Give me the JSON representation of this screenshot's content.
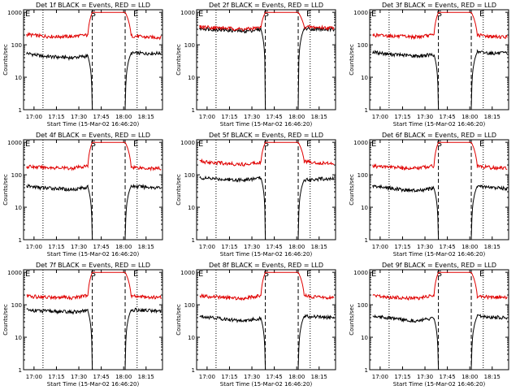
{
  "colors": {
    "events": "#000000",
    "lld": "#e00000",
    "axis": "#000000"
  },
  "axis_labels": {
    "ylabel": "Counts/sec",
    "xlabel": "Start Time (15-Mar-02 16:46:20)"
  },
  "time_ticks": [
    "17:00",
    "17:15",
    "17:30",
    "17:45",
    "18:00",
    "18:15"
  ],
  "y_ticks": [
    "1",
    "10",
    "100",
    "1000"
  ],
  "markers": [
    "E",
    "S",
    "E"
  ],
  "chart_data": [
    {
      "type": "line",
      "title": "Det 1f BLACK = Events, RED = LLD",
      "x_range": [
        "16:53",
        "18:26"
      ],
      "ylim": [
        1,
        1200
      ],
      "yscale": "log",
      "x_ticks": [
        "17:00",
        "17:15",
        "17:30",
        "17:45",
        "18:00",
        "18:15"
      ],
      "event_lines": [
        "17:39",
        "18:01"
      ],
      "dotted_lines": [
        "17:06",
        "18:09"
      ],
      "series": [
        {
          "name": "BLACK = Events",
          "x": [
            "16:55",
            "17:05",
            "17:15",
            "17:25",
            "17:36",
            "17:39",
            "17:45",
            "18:01",
            "18:05",
            "18:15",
            "18:25"
          ],
          "values": [
            55,
            45,
            42,
            40,
            45,
            0,
            0,
            0,
            55,
            55,
            55
          ]
        },
        {
          "name": "RED = LLD",
          "x": [
            "16:55",
            "17:05",
            "17:15",
            "17:25",
            "17:36",
            "17:39",
            "17:45",
            "18:01",
            "18:05",
            "18:15",
            "18:25"
          ],
          "values": [
            210,
            185,
            180,
            180,
            200,
            1000,
            1000,
            1000,
            190,
            170,
            170
          ]
        }
      ]
    },
    {
      "type": "line",
      "title": "Det 2f BLACK = Events, RED = LLD",
      "x_range": [
        "16:53",
        "18:26"
      ],
      "ylim": [
        1,
        1200
      ],
      "yscale": "log",
      "x_ticks": [
        "17:00",
        "17:15",
        "17:30",
        "17:45",
        "18:00",
        "18:15"
      ],
      "event_lines": [
        "17:39",
        "18:01"
      ],
      "dotted_lines": [
        "17:06",
        "18:09"
      ],
      "series": [
        {
          "name": "BLACK = Events",
          "x": [
            "16:55",
            "17:05",
            "17:15",
            "17:25",
            "17:36",
            "17:39",
            "17:45",
            "18:01",
            "18:05",
            "18:15",
            "18:25"
          ],
          "values": [
            320,
            300,
            280,
            260,
            300,
            0,
            0,
            0,
            320,
            300,
            290
          ]
        },
        {
          "name": "RED = LLD",
          "x": [
            "16:55",
            "17:05",
            "17:15",
            "17:25",
            "17:36",
            "17:39",
            "17:45",
            "18:01",
            "18:05",
            "18:15",
            "18:25"
          ],
          "values": [
            360,
            340,
            320,
            300,
            340,
            1000,
            1000,
            1000,
            360,
            340,
            330
          ]
        }
      ]
    },
    {
      "type": "line",
      "title": "Det 3f BLACK = Events, RED = LLD",
      "x_range": [
        "16:53",
        "18:26"
      ],
      "ylim": [
        1,
        1200
      ],
      "yscale": "log",
      "x_ticks": [
        "17:00",
        "17:15",
        "17:30",
        "17:45",
        "18:00",
        "18:15"
      ],
      "event_lines": [
        "17:39",
        "18:01"
      ],
      "dotted_lines": [
        "17:06",
        "18:09"
      ],
      "series": [
        {
          "name": "BLACK = Events",
          "x": [
            "16:55",
            "17:05",
            "17:15",
            "17:25",
            "17:36",
            "17:39",
            "17:45",
            "18:01",
            "18:05",
            "18:15",
            "18:25"
          ],
          "values": [
            60,
            52,
            48,
            45,
            50,
            0,
            0,
            0,
            60,
            55,
            55
          ]
        },
        {
          "name": "RED = LLD",
          "x": [
            "16:55",
            "17:05",
            "17:15",
            "17:25",
            "17:36",
            "17:39",
            "17:45",
            "18:01",
            "18:05",
            "18:15",
            "18:25"
          ],
          "values": [
            200,
            190,
            180,
            175,
            200,
            1000,
            1000,
            1000,
            200,
            180,
            175
          ]
        }
      ]
    },
    {
      "type": "line",
      "title": "Det 4f BLACK = Events, RED = LLD",
      "x_range": [
        "16:53",
        "18:26"
      ],
      "ylim": [
        1,
        1200
      ],
      "yscale": "log",
      "x_ticks": [
        "17:00",
        "17:15",
        "17:30",
        "17:45",
        "18:00",
        "18:15"
      ],
      "event_lines": [
        "17:39",
        "18:01"
      ],
      "dotted_lines": [
        "17:06",
        "18:09"
      ],
      "series": [
        {
          "name": "BLACK = Events",
          "x": [
            "16:55",
            "17:05",
            "17:15",
            "17:25",
            "17:36",
            "17:39",
            "17:45",
            "18:01",
            "18:05",
            "18:15",
            "18:25"
          ],
          "values": [
            45,
            40,
            38,
            35,
            42,
            0,
            0,
            0,
            45,
            42,
            40
          ]
        },
        {
          "name": "RED = LLD",
          "x": [
            "16:55",
            "17:05",
            "17:15",
            "17:25",
            "17:36",
            "17:39",
            "17:45",
            "18:01",
            "18:05",
            "18:15",
            "18:25"
          ],
          "values": [
            180,
            170,
            165,
            160,
            185,
            1000,
            1000,
            1000,
            175,
            160,
            155
          ]
        }
      ]
    },
    {
      "type": "line",
      "title": "Det 5f BLACK = Events, RED = LLD",
      "x_range": [
        "16:53",
        "18:26"
      ],
      "ylim": [
        1,
        1200
      ],
      "yscale": "log",
      "x_ticks": [
        "17:00",
        "17:15",
        "17:30",
        "17:45",
        "18:00",
        "18:15"
      ],
      "event_lines": [
        "17:39",
        "18:01"
      ],
      "dotted_lines": [
        "17:06",
        "18:09"
      ],
      "series": [
        {
          "name": "BLACK = Events",
          "x": [
            "16:55",
            "17:05",
            "17:15",
            "17:25",
            "17:36",
            "17:39",
            "17:45",
            "18:01",
            "18:05",
            "18:15",
            "18:25"
          ],
          "values": [
            80,
            75,
            72,
            70,
            80,
            0,
            0,
            0,
            70,
            75,
            75
          ]
        },
        {
          "name": "RED = LLD",
          "x": [
            "16:55",
            "17:05",
            "17:15",
            "17:25",
            "17:36",
            "17:39",
            "17:45",
            "18:01",
            "18:05",
            "18:15",
            "18:25"
          ],
          "values": [
            260,
            240,
            220,
            210,
            250,
            1000,
            1000,
            1000,
            260,
            230,
            230
          ]
        }
      ]
    },
    {
      "type": "line",
      "title": "Det 6f BLACK = Events, RED = LLD",
      "x_range": [
        "16:53",
        "18:26"
      ],
      "ylim": [
        1,
        1200
      ],
      "yscale": "log",
      "x_ticks": [
        "17:00",
        "17:15",
        "17:30",
        "17:45",
        "18:00",
        "18:15"
      ],
      "event_lines": [
        "17:39",
        "18:01"
      ],
      "dotted_lines": [
        "17:06",
        "18:09"
      ],
      "series": [
        {
          "name": "BLACK = Events",
          "x": [
            "16:55",
            "17:05",
            "17:15",
            "17:25",
            "17:36",
            "17:39",
            "17:45",
            "18:01",
            "18:05",
            "18:15",
            "18:25"
          ],
          "values": [
            45,
            40,
            35,
            32,
            38,
            0,
            0,
            0,
            45,
            40,
            38
          ]
        },
        {
          "name": "RED = LLD",
          "x": [
            "16:55",
            "17:05",
            "17:15",
            "17:25",
            "17:36",
            "17:39",
            "17:45",
            "18:01",
            "18:05",
            "18:15",
            "18:25"
          ],
          "values": [
            185,
            175,
            165,
            160,
            190,
            1000,
            1000,
            1000,
            185,
            165,
            160
          ]
        }
      ]
    },
    {
      "type": "line",
      "title": "Det 7f BLACK = Events, RED = LLD",
      "x_range": [
        "16:53",
        "18:26"
      ],
      "ylim": [
        1,
        1200
      ],
      "yscale": "log",
      "x_ticks": [
        "17:00",
        "17:15",
        "17:30",
        "17:45",
        "18:00",
        "18:15"
      ],
      "event_lines": [
        "17:39",
        "18:01"
      ],
      "dotted_lines": [
        "17:06",
        "18:09"
      ],
      "series": [
        {
          "name": "BLACK = Events",
          "x": [
            "16:55",
            "17:05",
            "17:15",
            "17:25",
            "17:36",
            "17:39",
            "17:45",
            "18:01",
            "18:05",
            "18:15",
            "18:25"
          ],
          "values": [
            70,
            65,
            62,
            60,
            65,
            0,
            0,
            0,
            70,
            68,
            65
          ]
        },
        {
          "name": "RED = LLD",
          "x": [
            "16:55",
            "17:05",
            "17:15",
            "17:25",
            "17:36",
            "17:39",
            "17:45",
            "18:01",
            "18:05",
            "18:15",
            "18:25"
          ],
          "values": [
            185,
            175,
            170,
            165,
            190,
            1000,
            1000,
            1000,
            185,
            175,
            170
          ]
        }
      ]
    },
    {
      "type": "line",
      "title": "Det 8f BLACK = Events, RED = LLD",
      "x_range": [
        "16:53",
        "18:26"
      ],
      "ylim": [
        1,
        1200
      ],
      "yscale": "log",
      "x_ticks": [
        "17:00",
        "17:15",
        "17:30",
        "17:45",
        "18:00",
        "18:15"
      ],
      "event_lines": [
        "17:39",
        "18:01"
      ],
      "dotted_lines": [
        "17:06",
        "18:09"
      ],
      "series": [
        {
          "name": "BLACK = Events",
          "x": [
            "16:55",
            "17:05",
            "17:15",
            "17:25",
            "17:36",
            "17:39",
            "17:45",
            "18:01",
            "18:05",
            "18:15",
            "18:25"
          ],
          "values": [
            45,
            40,
            35,
            32,
            38,
            0,
            0,
            0,
            45,
            42,
            40
          ]
        },
        {
          "name": "RED = LLD",
          "x": [
            "16:55",
            "17:05",
            "17:15",
            "17:25",
            "17:36",
            "17:39",
            "17:45",
            "18:01",
            "18:05",
            "18:15",
            "18:25"
          ],
          "values": [
            190,
            175,
            165,
            160,
            190,
            1000,
            1000,
            1000,
            190,
            170,
            165
          ]
        }
      ]
    },
    {
      "type": "line",
      "title": "Det 9f BLACK = Events, RED = LLD",
      "x_range": [
        "16:53",
        "18:26"
      ],
      "ylim": [
        1,
        1200
      ],
      "yscale": "log",
      "x_ticks": [
        "17:00",
        "17:15",
        "17:30",
        "17:45",
        "18:00",
        "18:15"
      ],
      "event_lines": [
        "17:39",
        "18:01"
      ],
      "dotted_lines": [
        "17:06",
        "18:09"
      ],
      "series": [
        {
          "name": "BLACK = Events",
          "x": [
            "16:55",
            "17:05",
            "17:15",
            "17:25",
            "17:36",
            "17:39",
            "17:45",
            "18:01",
            "18:05",
            "18:15",
            "18:25"
          ],
          "values": [
            45,
            40,
            35,
            32,
            38,
            0,
            0,
            0,
            45,
            42,
            40
          ]
        },
        {
          "name": "RED = LLD",
          "x": [
            "16:55",
            "17:05",
            "17:15",
            "17:25",
            "17:36",
            "17:39",
            "17:45",
            "18:01",
            "18:05",
            "18:15",
            "18:25"
          ],
          "values": [
            185,
            175,
            165,
            160,
            190,
            1000,
            1000,
            1000,
            185,
            170,
            165
          ]
        }
      ]
    }
  ]
}
